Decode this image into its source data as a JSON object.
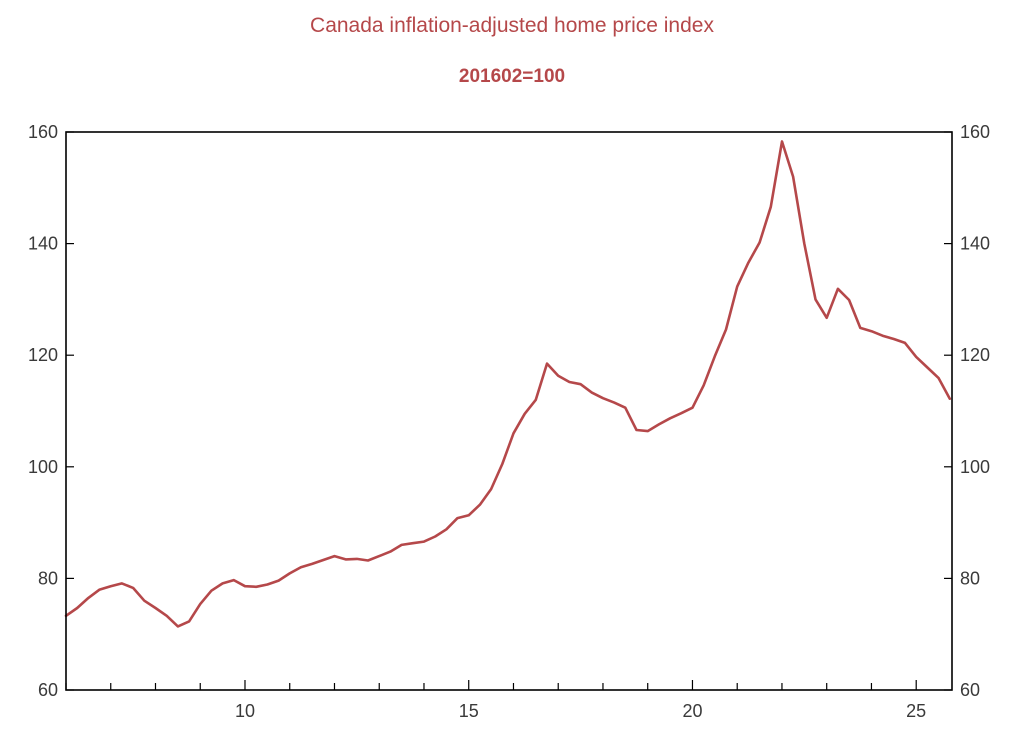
{
  "chart_data": {
    "type": "line",
    "title": "Canada inflation-adjusted home price index",
    "subtitle": "201602=100",
    "xlabel": "",
    "ylabel": "",
    "xlim": [
      2006.0,
      2025.8
    ],
    "ylim": [
      60,
      160
    ],
    "x_ticks": [
      10,
      15,
      20,
      25
    ],
    "x_tick_years": [
      2010,
      2015,
      2020,
      2025
    ],
    "y_ticks": [
      60,
      80,
      100,
      120,
      140,
      160
    ],
    "grid": false,
    "dual_y_axis": true,
    "series": [
      {
        "name": "Canada inflation-adjusted home price index",
        "color": "#b5484a",
        "x": [
          2006.0,
          2006.25,
          2006.5,
          2006.75,
          2007.0,
          2007.25,
          2007.5,
          2007.75,
          2008.0,
          2008.25,
          2008.5,
          2008.75,
          2009.0,
          2009.25,
          2009.5,
          2009.75,
          2010.0,
          2010.25,
          2010.5,
          2010.75,
          2011.0,
          2011.25,
          2011.5,
          2011.75,
          2012.0,
          2012.25,
          2012.5,
          2012.75,
          2013.0,
          2013.25,
          2013.5,
          2013.75,
          2014.0,
          2014.25,
          2014.5,
          2014.75,
          2015.0,
          2015.25,
          2015.5,
          2015.75,
          2016.0,
          2016.25,
          2016.5,
          2016.75,
          2017.0,
          2017.25,
          2017.5,
          2017.75,
          2018.0,
          2018.25,
          2018.5,
          2018.75,
          2019.0,
          2019.25,
          2019.5,
          2019.75,
          2020.0,
          2020.25,
          2020.5,
          2020.75,
          2021.0,
          2021.25,
          2021.5,
          2021.75,
          2022.0,
          2022.25,
          2022.5,
          2022.75,
          2023.0,
          2023.25,
          2023.5,
          2023.75,
          2024.0,
          2024.25,
          2024.5,
          2024.75,
          2025.0,
          2025.25,
          2025.5,
          2025.75
        ],
        "values": [
          73.3,
          74.7,
          76.5,
          78.0,
          78.6,
          79.1,
          78.3,
          76.0,
          74.7,
          73.3,
          71.4,
          72.3,
          75.4,
          77.8,
          79.1,
          79.7,
          78.6,
          78.5,
          78.9,
          79.6,
          80.9,
          82.0,
          82.6,
          83.3,
          84.0,
          83.4,
          83.5,
          83.2,
          84.0,
          84.8,
          86.0,
          86.3,
          86.6,
          87.5,
          88.8,
          90.8,
          91.3,
          93.2,
          96.0,
          100.5,
          106.0,
          109.5,
          112.0,
          118.5,
          116.3,
          115.2,
          114.8,
          113.3,
          112.3,
          111.5,
          110.6,
          106.6,
          106.4,
          107.6,
          108.7,
          109.6,
          110.6,
          114.6,
          119.8,
          124.6,
          132.3,
          136.6,
          140.2,
          146.6,
          158.3,
          152.0,
          140.0,
          130.0,
          126.7,
          131.9,
          129.9,
          124.9,
          124.3,
          123.5,
          122.9,
          122.2,
          119.7,
          117.8,
          115.9,
          112.2
        ]
      }
    ]
  }
}
